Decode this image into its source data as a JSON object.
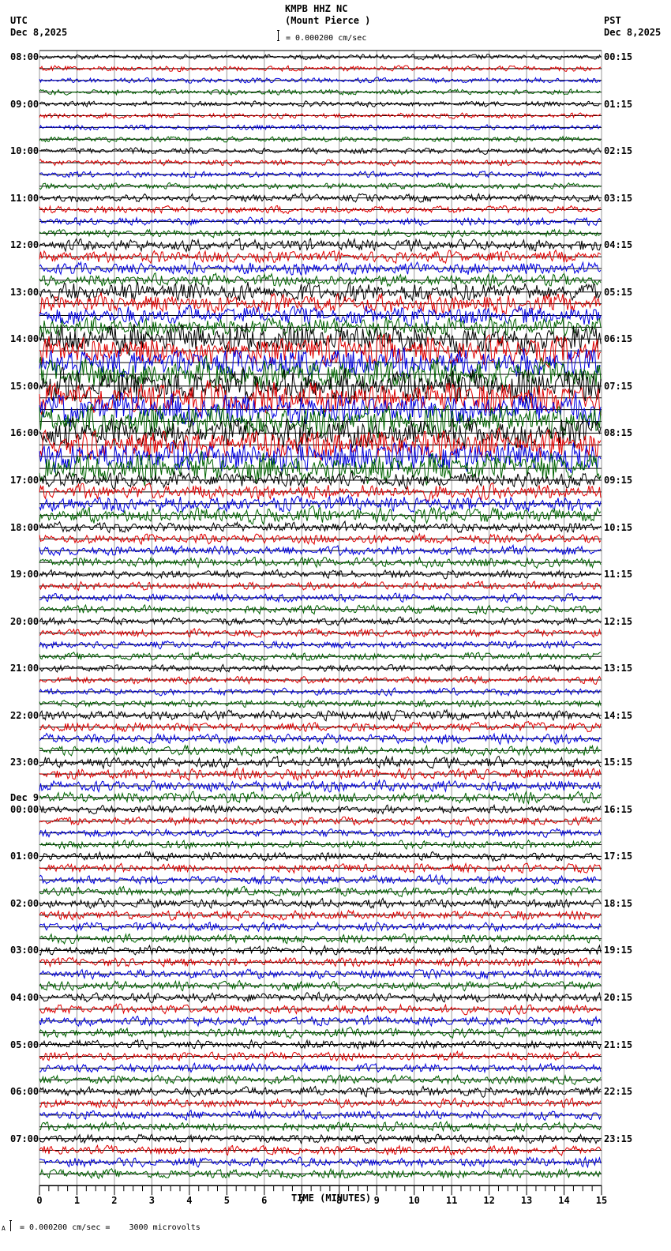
{
  "header": {
    "station": "KMPB HHZ NC",
    "location": "(Mount Pierce )",
    "scale_text": "= 0.000200 cm/sec",
    "left_tz": "UTC",
    "left_date": "Dec 8,2025",
    "right_tz": "PST",
    "right_date": "Dec 8,2025"
  },
  "footer": {
    "xlabel": "TIME (MINUTES)",
    "scale_note_prefix": "A",
    "scale_note": "= 0.000200 cm/sec =    3000 microvolts"
  },
  "chart_data": {
    "type": "line",
    "title": "KMPB HHZ NC (Mount Pierce )",
    "subtitle": "= 0.000200 cm/sec",
    "xlabel": "TIME (MINUTES)",
    "ylabel": "",
    "xlim": [
      0,
      15
    ],
    "x_ticks": [
      "0",
      "1",
      "2",
      "3",
      "4",
      "5",
      "6",
      "7",
      "8",
      "9",
      "10",
      "11",
      "12",
      "13",
      "14",
      "15"
    ],
    "grid": true,
    "traces_per_hour": 4,
    "trace_colors": [
      "#000000",
      "#e00000",
      "#0000e0",
      "#006400"
    ],
    "left_labels_utc": [
      "08:00",
      "09:00",
      "10:00",
      "11:00",
      "12:00",
      "13:00",
      "14:00",
      "15:00",
      "16:00",
      "17:00",
      "18:00",
      "19:00",
      "20:00",
      "21:00",
      "22:00",
      "23:00",
      "00:00",
      "01:00",
      "02:00",
      "03:00",
      "04:00",
      "05:00",
      "06:00",
      "07:00"
    ],
    "date_change_label": {
      "text": "Dec 9",
      "before_hour_index": 16
    },
    "right_labels_pst": [
      "00:15",
      "01:15",
      "02:15",
      "03:15",
      "04:15",
      "05:15",
      "06:15",
      "07:15",
      "08:15",
      "09:15",
      "10:15",
      "11:15",
      "12:15",
      "13:15",
      "14:15",
      "15:15",
      "16:15",
      "17:15",
      "18:15",
      "19:15",
      "20:15",
      "21:15",
      "22:15",
      "23:15"
    ],
    "hourly_amplitude_relative": [
      1.0,
      1.0,
      1.1,
      1.4,
      2.2,
      3.5,
      5.5,
      6.0,
      5.5,
      2.8,
      1.8,
      1.5,
      1.4,
      1.3,
      1.8,
      2.0,
      1.5,
      1.6,
      1.7,
      1.7,
      1.7,
      1.6,
      1.7,
      1.7
    ],
    "scale": "0.000200 cm/sec = 3000 microvolts"
  }
}
